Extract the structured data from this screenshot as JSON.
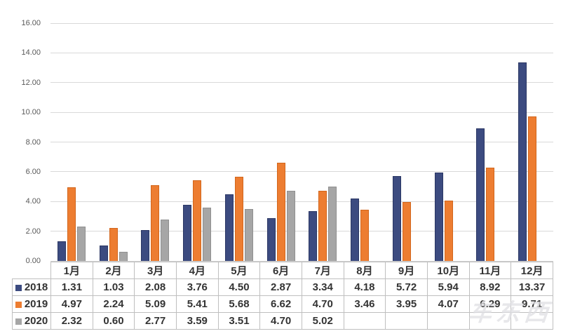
{
  "watermark": {
    "text": "车东西"
  },
  "chart_data": {
    "type": "bar",
    "title": "",
    "xlabel": "",
    "ylabel": "",
    "categories": [
      "1月",
      "2月",
      "3月",
      "4月",
      "5月",
      "6月",
      "7月",
      "8月",
      "9月",
      "10月",
      "11月",
      "12月"
    ],
    "series": [
      {
        "name": "2018",
        "color": "#3c4b80",
        "border_color": "#2b3764",
        "values": [
          1.31,
          1.03,
          2.08,
          3.76,
          4.5,
          2.87,
          3.34,
          4.18,
          5.72,
          5.94,
          8.92,
          13.37
        ]
      },
      {
        "name": "2019",
        "color": "#ed7d31",
        "border_color": "#d2661c",
        "values": [
          4.97,
          2.24,
          5.09,
          5.41,
          5.68,
          6.62,
          4.7,
          3.46,
          3.95,
          4.07,
          6.29,
          9.71
        ]
      },
      {
        "name": "2020",
        "color": "#a6a6a6",
        "border_color": "#8f8f8f",
        "values": [
          2.32,
          0.6,
          2.77,
          3.59,
          3.51,
          4.7,
          5.02,
          null,
          null,
          null,
          null,
          null
        ]
      }
    ],
    "ylim": [
      0,
      16
    ],
    "ytick_step": 2,
    "ytick_labels": [
      "0.00",
      "2.00",
      "4.00",
      "6.00",
      "8.00",
      "10.00",
      "12.00",
      "14.00",
      "16.00"
    ],
    "value_format_decimals": 2,
    "grid": true,
    "gridline_color": "#d9d9d9",
    "axis_label_color": "#595959",
    "legend_position": "data-table-left",
    "table_border_color": "#bfbfbf",
    "table_text_color": "#333333",
    "background_color": "#ffffff"
  }
}
